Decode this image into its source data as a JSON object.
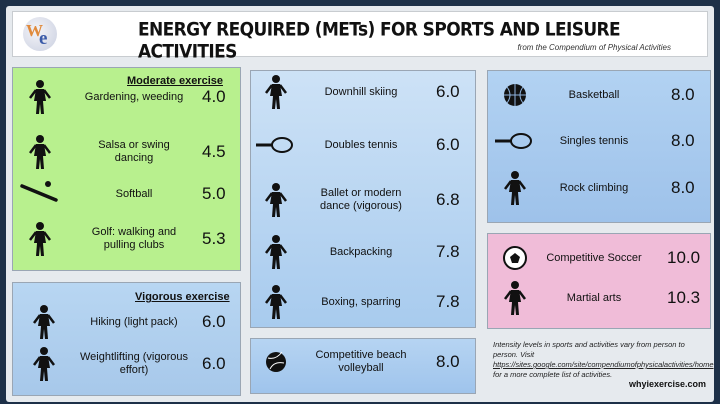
{
  "header": {
    "logo": "W/e",
    "title": "ENERGY REQUIRED (METs) FOR SPORTS AND LEISURE ACTIVITIES",
    "subtitle": "from the Compendium of Physical Activities"
  },
  "moderate": {
    "title": "Moderate exercise",
    "items": [
      {
        "label": "Gardening, weeding",
        "value": "4.0",
        "icon": "gardener-icon"
      },
      {
        "label": "Salsa or swing dancing",
        "value": "4.5",
        "icon": "dancers-icon"
      },
      {
        "label": "Softball",
        "value": "5.0",
        "icon": "bat-ball-icon"
      },
      {
        "label": "Golf: walking and pulling clubs",
        "value": "5.3",
        "icon": "golfer-icon"
      }
    ]
  },
  "vigorous": {
    "title": "Vigorous exercise",
    "items": [
      {
        "label": "Hiking (light pack)",
        "value": "6.0",
        "icon": "hiker-icon"
      },
      {
        "label": "Weightlifting (vigorous effort)",
        "value": "6.0",
        "icon": "weightlifter-icon"
      }
    ]
  },
  "middle": {
    "items": [
      {
        "label": "Downhill skiing",
        "value": "6.0",
        "icon": "skier-icon"
      },
      {
        "label": "Doubles tennis",
        "value": "6.0",
        "icon": "tennis-racket-icon"
      },
      {
        "label": "Ballet or modern dance (vigorous)",
        "value": "6.8",
        "icon": "ballet-dancer-icon"
      },
      {
        "label": "Backpacking",
        "value": "7.8",
        "icon": "backpacker-icon"
      },
      {
        "label": "Boxing, sparring",
        "value": "7.8",
        "icon": "boxer-icon"
      }
    ]
  },
  "volleyball": {
    "label": "Competitive beach volleyball",
    "value": "8.0",
    "icon": "volleyball-icon"
  },
  "right": {
    "items": [
      {
        "label": "Basketball",
        "value": "8.0",
        "icon": "basketball-icon"
      },
      {
        "label": "Singles tennis",
        "value": "8.0",
        "icon": "tennis-racket-icon"
      },
      {
        "label": "Rock climbing",
        "value": "8.0",
        "icon": "climber-icon"
      }
    ]
  },
  "pink": {
    "items": [
      {
        "label": "Competitive Soccer",
        "value": "10.0",
        "icon": "soccer-ball-icon"
      },
      {
        "label": "Martial arts",
        "value": "10.3",
        "icon": "martial-artist-icon"
      }
    ]
  },
  "note": {
    "text1": "Intensity levels in sports and activities vary from person to person.  Visit ",
    "link": "https://sites.google.com/site/compendiumofphysicalactivities/home",
    "text2": " for a more complete list of activities."
  },
  "site": "whyiexercise.com"
}
